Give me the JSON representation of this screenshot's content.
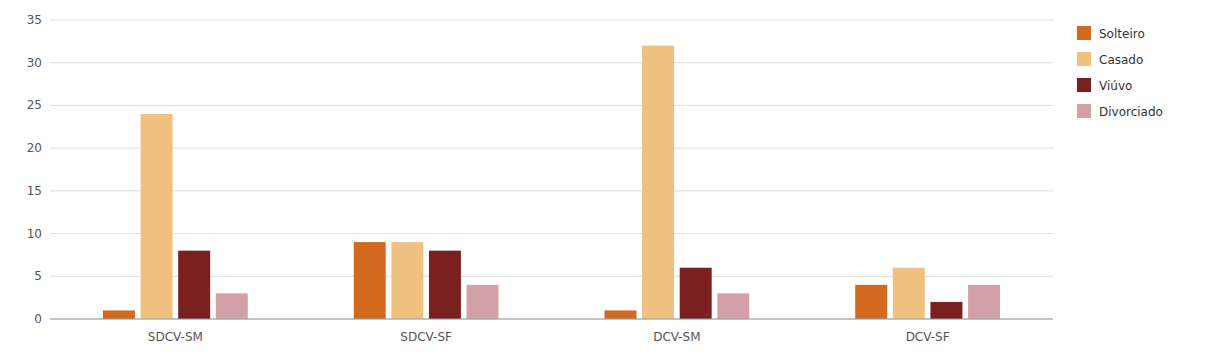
{
  "chart_data": {
    "type": "bar",
    "categories": [
      "SDCV-SM",
      "SDCV-SF",
      "DCV-SM",
      "DCV-SF"
    ],
    "series": [
      {
        "name": "Solteiro",
        "color": "#D2691E",
        "values": [
          1,
          9,
          1,
          4
        ]
      },
      {
        "name": "Casado",
        "color": "#F0C080",
        "values": [
          24,
          9,
          32,
          6
        ]
      },
      {
        "name": "Viúvo",
        "color": "#7B2020",
        "values": [
          8,
          8,
          6,
          2
        ]
      },
      {
        "name": "Divorciado",
        "color": "#D4A0A8",
        "values": [
          3,
          4,
          3,
          4
        ]
      }
    ],
    "ylim": [
      0,
      35
    ],
    "yticks": [
      0,
      5,
      10,
      15,
      20,
      25,
      30,
      35
    ],
    "grid": true,
    "legend": "right"
  }
}
